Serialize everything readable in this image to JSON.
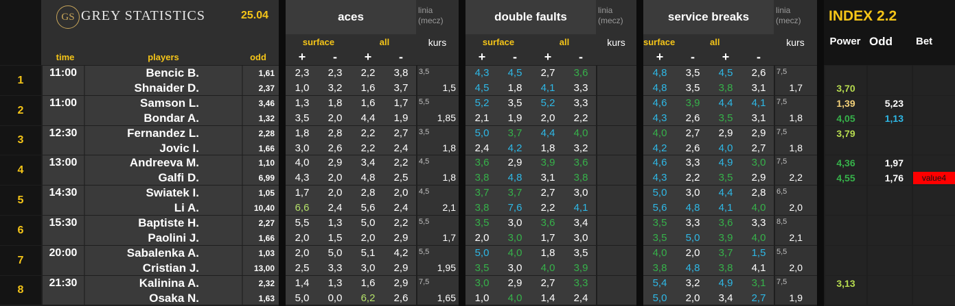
{
  "brand": {
    "logo_mark": "GS",
    "name": "GREY STATISTICS",
    "date": "25.04"
  },
  "sections": {
    "aces": {
      "title": "aces",
      "linia": "linia\n(mecz)",
      "kurs": "kurs"
    },
    "double_faults": {
      "title": "double faults",
      "linia": "linia\n(mecz)",
      "kurs": "kurs"
    },
    "service_breaks": {
      "title": "service breaks",
      "linia": "linia\n(mecz)",
      "kurs": "kurs"
    }
  },
  "subheaders": {
    "surface": "surface",
    "all": "all",
    "plus": "+",
    "minus": "-"
  },
  "columns": {
    "time": "time",
    "players": "players",
    "odd": "odd"
  },
  "index": {
    "title": "INDEX 2.2",
    "power": "Power",
    "odd": "Odd",
    "bet": "Bet"
  },
  "rows": [
    {
      "n": "1",
      "time": "11:00",
      "p": [
        {
          "name": "Bencic B.",
          "odd": "1,61",
          "aces": [
            "2,3",
            "2,3",
            "2,2",
            "3,8"
          ],
          "aces_linia": "3,5",
          "aces_kurs": "",
          "df": [
            "4,3",
            "4,5",
            "2,7",
            "3,6"
          ],
          "df_c": [
            "b",
            "b",
            "w",
            "g"
          ],
          "sb": [
            "4,8",
            "3,5",
            "4,5",
            "2,6"
          ],
          "sb_c": [
            "b",
            "w",
            "b",
            "w"
          ],
          "sb_linia": "7,5",
          "sb_kurs": "",
          "power": "",
          "odd_i": "",
          "bet": ""
        },
        {
          "name": "Shnaider D.",
          "odd": "2,37",
          "aces": [
            "1,0",
            "3,2",
            "1,6",
            "3,7"
          ],
          "aces_linia": "",
          "aces_kurs": "1,5",
          "df": [
            "4,5",
            "1,8",
            "4,1",
            "3,3"
          ],
          "df_c": [
            "b",
            "w",
            "b",
            "w"
          ],
          "sb": [
            "4,8",
            "3,5",
            "3,8",
            "3,1"
          ],
          "sb_c": [
            "b",
            "w",
            "g",
            "w"
          ],
          "sb_linia": "",
          "sb_kurs": "1,7",
          "power": "3,70",
          "power_c": "pw-lg",
          "odd_i": "",
          "bet": ""
        }
      ]
    },
    {
      "n": "2",
      "time": "11:00",
      "p": [
        {
          "name": "Samson L.",
          "odd": "3,46",
          "aces": [
            "1,3",
            "1,8",
            "1,6",
            "1,7"
          ],
          "aces_linia": "5,5",
          "aces_kurs": "",
          "df": [
            "5,2",
            "3,5",
            "5,2",
            "3,3"
          ],
          "df_c": [
            "b",
            "w",
            "b",
            "w"
          ],
          "sb": [
            "4,6",
            "3,9",
            "4,4",
            "4,1"
          ],
          "sb_c": [
            "b",
            "g",
            "b",
            "b"
          ],
          "sb_linia": "7,5",
          "sb_kurs": "",
          "power": "1,39",
          "power_c": "pw-y",
          "odd_i": "5,23",
          "odd_c": "w",
          "bet": ""
        },
        {
          "name": "Bondar A.",
          "odd": "1,32",
          "aces": [
            "3,5",
            "2,0",
            "4,4",
            "1,9"
          ],
          "aces_linia": "",
          "aces_kurs": "1,85",
          "df": [
            "2,1",
            "1,9",
            "2,0",
            "2,2"
          ],
          "df_c": [
            "w",
            "w",
            "w",
            "w"
          ],
          "sb": [
            "4,3",
            "2,6",
            "3,5",
            "3,1"
          ],
          "sb_c": [
            "b",
            "w",
            "g",
            "w"
          ],
          "sb_linia": "",
          "sb_kurs": "1,8",
          "power": "4,05",
          "power_c": "pw-g",
          "odd_i": "1,13",
          "odd_c": "b",
          "bet": ""
        }
      ]
    },
    {
      "n": "3",
      "time": "12:30",
      "p": [
        {
          "name": "Fernandez L.",
          "odd": "2,28",
          "aces": [
            "1,8",
            "2,8",
            "2,2",
            "2,7"
          ],
          "aces_linia": "3,5",
          "aces_kurs": "",
          "df": [
            "5,0",
            "3,7",
            "4,4",
            "4,0"
          ],
          "df_c": [
            "b",
            "g",
            "b",
            "g"
          ],
          "sb": [
            "4,0",
            "2,7",
            "2,9",
            "2,9"
          ],
          "sb_c": [
            "g",
            "w",
            "w",
            "w"
          ],
          "sb_linia": "7,5",
          "sb_kurs": "",
          "power": "3,79",
          "power_c": "pw-lg",
          "odd_i": "",
          "bet": ""
        },
        {
          "name": "Jovic I.",
          "odd": "1,66",
          "aces": [
            "3,0",
            "2,6",
            "2,2",
            "2,4"
          ],
          "aces_linia": "",
          "aces_kurs": "1,8",
          "df": [
            "2,4",
            "4,2",
            "1,8",
            "3,2"
          ],
          "df_c": [
            "w",
            "b",
            "w",
            "w"
          ],
          "sb": [
            "4,2",
            "2,6",
            "4,0",
            "2,7"
          ],
          "sb_c": [
            "b",
            "w",
            "b",
            "w"
          ],
          "sb_linia": "",
          "sb_kurs": "1,8",
          "power": "",
          "odd_i": "",
          "bet": ""
        }
      ]
    },
    {
      "n": "4",
      "time": "13:00",
      "p": [
        {
          "name": "Andreeva M.",
          "odd": "1,10",
          "aces": [
            "4,0",
            "2,9",
            "3,4",
            "2,2"
          ],
          "aces_linia": "4,5",
          "aces_kurs": "",
          "df": [
            "3,6",
            "2,9",
            "3,9",
            "3,6"
          ],
          "df_c": [
            "g",
            "w",
            "g",
            "g"
          ],
          "sb": [
            "4,6",
            "3,3",
            "4,9",
            "3,0"
          ],
          "sb_c": [
            "b",
            "w",
            "b",
            "g"
          ],
          "sb_linia": "7,5",
          "sb_kurs": "",
          "power": "4,36",
          "power_c": "pw-g",
          "odd_i": "1,97",
          "odd_c": "w",
          "bet": ""
        },
        {
          "name": "Galfi D.",
          "odd": "6,99",
          "aces": [
            "4,3",
            "2,0",
            "4,8",
            "2,5"
          ],
          "aces_linia": "",
          "aces_kurs": "1,8",
          "df": [
            "3,8",
            "4,8",
            "3,1",
            "3,8"
          ],
          "df_c": [
            "g",
            "b",
            "w",
            "g"
          ],
          "sb": [
            "4,3",
            "2,2",
            "3,5",
            "2,9"
          ],
          "sb_c": [
            "b",
            "w",
            "g",
            "w"
          ],
          "sb_linia": "",
          "sb_kurs": "2,2",
          "power": "4,55",
          "power_c": "pw-g",
          "odd_i": "1,76",
          "odd_c": "w",
          "bet": "value4"
        }
      ]
    },
    {
      "n": "5",
      "time": "14:30",
      "p": [
        {
          "name": "Swiatek I.",
          "odd": "1,05",
          "aces": [
            "1,7",
            "2,0",
            "2,8",
            "2,0"
          ],
          "aces_linia": "4,5",
          "aces_kurs": "",
          "df": [
            "3,7",
            "3,7",
            "2,7",
            "3,0"
          ],
          "df_c": [
            "g",
            "g",
            "w",
            "w"
          ],
          "sb": [
            "5,0",
            "3,0",
            "4,4",
            "2,8"
          ],
          "sb_c": [
            "b",
            "w",
            "b",
            "w"
          ],
          "sb_linia": "6,5",
          "sb_kurs": "",
          "power": "",
          "odd_i": "",
          "bet": ""
        },
        {
          "name": "Li A.",
          "odd": "10,40",
          "aces": [
            "6,6",
            "2,4",
            "5,6",
            "2,4"
          ],
          "aces_c0": "lg",
          "aces_linia": "",
          "aces_kurs": "2,1",
          "df": [
            "3,8",
            "7,6",
            "2,2",
            "4,1"
          ],
          "df_c": [
            "g",
            "b",
            "w",
            "b"
          ],
          "sb": [
            "5,6",
            "4,8",
            "4,1",
            "4,0"
          ],
          "sb_c": [
            "b",
            "b",
            "b",
            "g"
          ],
          "sb_linia": "",
          "sb_kurs": "2,0",
          "power": "",
          "odd_i": "",
          "bet": ""
        }
      ]
    },
    {
      "n": "6",
      "time": "15:30",
      "p": [
        {
          "name": "Baptiste H.",
          "odd": "2,27",
          "aces": [
            "5,5",
            "1,3",
            "5,0",
            "2,2"
          ],
          "aces_linia": "5,5",
          "aces_kurs": "",
          "df": [
            "3,5",
            "3,0",
            "3,6",
            "3,4"
          ],
          "df_c": [
            "g",
            "w",
            "g",
            "w"
          ],
          "sb": [
            "3,5",
            "3,3",
            "3,6",
            "3,3"
          ],
          "sb_c": [
            "g",
            "w",
            "g",
            "w"
          ],
          "sb_linia": "8,5",
          "sb_kurs": "",
          "power": "",
          "odd_i": "",
          "bet": ""
        },
        {
          "name": "Paolini J.",
          "odd": "1,66",
          "aces": [
            "2,0",
            "1,5",
            "2,0",
            "2,9"
          ],
          "aces_linia": "",
          "aces_kurs": "1,7",
          "df": [
            "2,0",
            "3,0",
            "1,7",
            "3,0"
          ],
          "df_c": [
            "w",
            "g",
            "w",
            "w"
          ],
          "sb": [
            "3,5",
            "5,0",
            "3,9",
            "4,0"
          ],
          "sb_c": [
            "g",
            "b",
            "g",
            "g"
          ],
          "sb_linia": "",
          "sb_kurs": "2,1",
          "power": "",
          "odd_i": "",
          "bet": ""
        }
      ]
    },
    {
      "n": "7",
      "time": "20:00",
      "p": [
        {
          "name": "Sabalenka A.",
          "odd": "1,03",
          "aces": [
            "2,0",
            "5,0",
            "5,1",
            "4,2"
          ],
          "aces_linia": "5,5",
          "aces_kurs": "",
          "df": [
            "5,0",
            "4,0",
            "1,8",
            "3,5"
          ],
          "df_c": [
            "b",
            "g",
            "w",
            "w"
          ],
          "sb": [
            "4,0",
            "2,0",
            "3,7",
            "1,5"
          ],
          "sb_c": [
            "g",
            "w",
            "g",
            "b"
          ],
          "sb_linia": "5,5",
          "sb_kurs": "",
          "power": "",
          "odd_i": "",
          "bet": ""
        },
        {
          "name": "Cristian J.",
          "odd": "13,00",
          "aces": [
            "2,5",
            "3,3",
            "3,0",
            "2,9"
          ],
          "aces_linia": "",
          "aces_kurs": "1,95",
          "df": [
            "3,5",
            "3,0",
            "4,0",
            "3,9"
          ],
          "df_c": [
            "g",
            "w",
            "g",
            "g"
          ],
          "sb": [
            "3,8",
            "4,8",
            "3,8",
            "4,1"
          ],
          "sb_c": [
            "g",
            "b",
            "g",
            "w"
          ],
          "sb_linia": "",
          "sb_kurs": "2,0",
          "power": "",
          "odd_i": "",
          "bet": ""
        }
      ]
    },
    {
      "n": "8",
      "time": "21:30",
      "p": [
        {
          "name": "Kalinina A.",
          "odd": "2,32",
          "aces": [
            "1,4",
            "1,3",
            "1,6",
            "2,9"
          ],
          "aces_linia": "7,5",
          "aces_kurs": "",
          "df": [
            "3,0",
            "2,9",
            "2,7",
            "3,3"
          ],
          "df_c": [
            "g",
            "w",
            "w",
            "g"
          ],
          "sb": [
            "5,4",
            "3,2",
            "4,9",
            "3,1"
          ],
          "sb_c": [
            "b",
            "w",
            "b",
            "g"
          ],
          "sb_linia": "7,5",
          "sb_kurs": "",
          "power": "3,13",
          "power_c": "pw-lg",
          "odd_i": "",
          "bet": ""
        },
        {
          "name": "Osaka N.",
          "odd": "1,63",
          "aces": [
            "5,0",
            "0,0",
            "6,2",
            "2,6"
          ],
          "aces_c2": "lg",
          "aces_linia": "",
          "aces_kurs": "1,65",
          "df": [
            "1,0",
            "4,0",
            "1,4",
            "2,4"
          ],
          "df_c": [
            "w",
            "g",
            "w",
            "w"
          ],
          "sb": [
            "5,0",
            "2,0",
            "3,4",
            "2,7"
          ],
          "sb_c": [
            "b",
            "w",
            "w",
            "b"
          ],
          "sb_linia": "",
          "sb_kurs": "1,9",
          "power": "",
          "odd_i": "",
          "bet": ""
        }
      ]
    }
  ]
}
